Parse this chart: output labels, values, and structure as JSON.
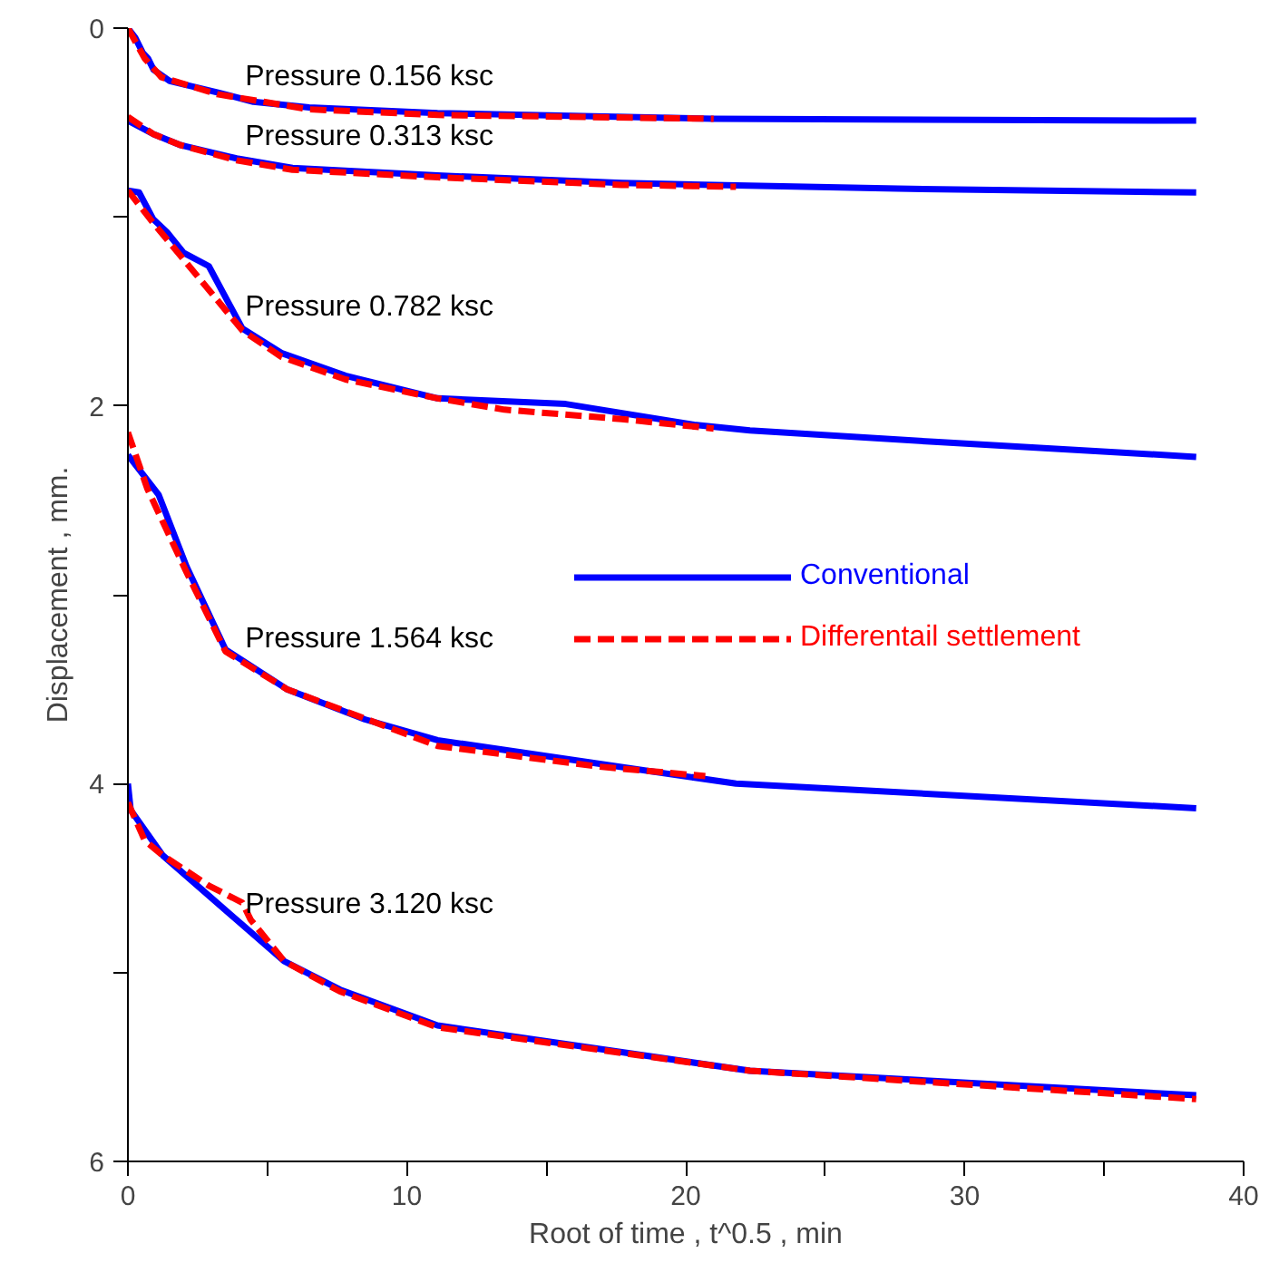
{
  "chart_data": {
    "type": "line",
    "xlabel": "Root of time , t^0.5 , min",
    "ylabel": "Displacement , mm.",
    "xlim": [
      0,
      40
    ],
    "ylim": [
      6,
      0
    ],
    "xticks": [
      0,
      {
        "value": 5,
        "label": null
      },
      10,
      {
        "value": 15,
        "label": null
      },
      20,
      {
        "value": 25,
        "label": null
      },
      30,
      {
        "value": 35,
        "label": null
      },
      40
    ],
    "yticks": [
      0,
      {
        "value": 1,
        "label": null
      },
      2,
      {
        "value": 3,
        "label": null
      },
      4,
      {
        "value": 5,
        "label": null
      },
      6
    ],
    "grid": false,
    "legend": "right",
    "marker": "none",
    "series": [
      {
        "name": "Conventional",
        "color": "#0000ff",
        "line_style": "solid",
        "x": [
          0,
          0.26,
          0.53,
          0.72,
          0.92,
          1.5,
          3.2,
          4.5,
          6.5,
          11.1,
          21,
          38.3
        ],
        "values": [
          0,
          0.05,
          0.13,
          0.16,
          0.22,
          0.28,
          0.34,
          0.39,
          0.42,
          0.45,
          0.48,
          0.49
        ]
      },
      {
        "color": "#0000ff",
        "line_style": "solid",
        "x": [
          0,
          0.9,
          1.9,
          3.9,
          5.9,
          11.1,
          17.7,
          27.6,
          38.3
        ],
        "values": [
          0.49,
          0.56,
          0.62,
          0.69,
          0.74,
          0.78,
          0.82,
          0.85,
          0.87
        ]
      },
      {
        "color": "#0000ff",
        "line_style": "solid",
        "x": [
          0,
          0.4,
          0.9,
          1.4,
          2.0,
          2.9,
          4.1,
          5.5,
          7.8,
          11.1,
          15.7,
          20.3,
          22.3,
          28.9,
          38.3
        ],
        "values": [
          0.86,
          0.87,
          1.01,
          1.08,
          1.19,
          1.26,
          1.59,
          1.72,
          1.84,
          1.96,
          1.99,
          2.1,
          2.13,
          2.19,
          2.27
        ]
      },
      {
        "color": "#0000ff",
        "line_style": "solid",
        "x": [
          0,
          1.1,
          2.1,
          3.5,
          5.7,
          8.5,
          11.1,
          21.8,
          38.3
        ],
        "values": [
          2.26,
          2.47,
          2.85,
          3.29,
          3.5,
          3.66,
          3.77,
          4.0,
          4.13
        ]
      },
      {
        "color": "#0000ff",
        "line_style": "solid",
        "x": [
          0,
          0.1,
          1.25,
          5.6,
          7.6,
          11.1,
          22.3,
          38.3
        ],
        "values": [
          4.0,
          4.14,
          4.38,
          4.94,
          5.09,
          5.28,
          5.52,
          5.65
        ]
      },
      {
        "name": "Differentail settlement",
        "color": "#ff0000",
        "line_style": "dashed",
        "x": [
          0,
          0.6,
          1.2,
          3.2,
          6.5,
          11.1,
          21
        ],
        "values": [
          0,
          0.16,
          0.26,
          0.35,
          0.43,
          0.46,
          0.48
        ]
      },
      {
        "color": "#ff0000",
        "line_style": "dashed",
        "x": [
          0,
          0.9,
          1.9,
          3.9,
          5.9,
          11.1,
          17.7,
          21.8
        ],
        "values": [
          0.47,
          0.56,
          0.62,
          0.7,
          0.75,
          0.79,
          0.83,
          0.84
        ]
      },
      {
        "color": "#ff0000",
        "line_style": "dashed",
        "x": [
          0,
          0.9,
          2.7,
          4.1,
          5.5,
          7.8,
          11.1,
          13.5,
          17.7,
          21
        ],
        "values": [
          0.86,
          1.03,
          1.35,
          1.6,
          1.74,
          1.86,
          1.96,
          2.02,
          2.07,
          2.12
        ]
      },
      {
        "color": "#ff0000",
        "line_style": "dashed",
        "x": [
          0,
          0.7,
          2.1,
          3.5,
          5.7,
          11.1,
          16.9,
          20.7
        ],
        "values": [
          2.14,
          2.44,
          2.88,
          3.3,
          3.5,
          3.8,
          3.91,
          3.96
        ]
      },
      {
        "color": "#ff0000",
        "line_style": "dashed",
        "x": [
          0,
          0.6,
          1.25,
          2.9,
          4.1,
          4.4,
          5.6,
          7.6,
          11.1,
          22.3,
          38.3
        ],
        "values": [
          4.1,
          4.3,
          4.38,
          4.54,
          4.63,
          4.72,
          4.94,
          5.1,
          5.29,
          5.52,
          5.67
        ]
      }
    ],
    "annotations": [
      "Pressure 0.156 ksc",
      "Pressure 0.313 ksc",
      "Pressure 0.782 ksc",
      "Pressure 1.564 ksc",
      "Pressure 3.120 ksc"
    ]
  }
}
